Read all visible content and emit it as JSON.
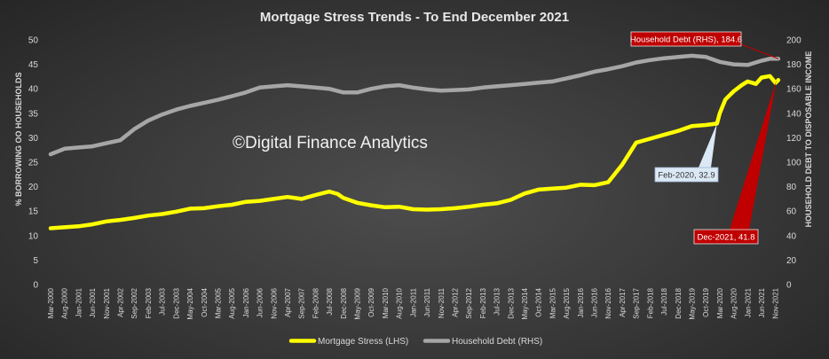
{
  "chart_data": {
    "type": "line",
    "title": "Mortgage Stress Trends - To End December 2021",
    "ylabel_left": "% BORROWING OO HOUSEHOLDS",
    "ylabel_right": "HOUSEHOLD DEBT TO DISPOSABLE INCOME",
    "ylim_left": [
      0,
      50
    ],
    "yticks_left": [
      0,
      5,
      10,
      15,
      20,
      25,
      30,
      35,
      40,
      45,
      50
    ],
    "ylim_right": [
      0,
      200
    ],
    "yticks_right": [
      0,
      20,
      40,
      60,
      80,
      100,
      120,
      140,
      160,
      180,
      200
    ],
    "x_ticks": [
      "Mar-2000",
      "Aug-2000",
      "Jan-2001",
      "Jun-2001",
      "Nov-2001",
      "Apr-2002",
      "Sep-2002",
      "Feb-2003",
      "Jul-2003",
      "Dec-2003",
      "May-2004",
      "Oct-2004",
      "Mar-2005",
      "Aug-2005",
      "Jan-2006",
      "Jun-2006",
      "Nov-2006",
      "Apr-2007",
      "Sep-2007",
      "Feb-2008",
      "Jul-2008",
      "Dec-2008",
      "May-2009",
      "Oct-2009",
      "Mar-2010",
      "Aug-2010",
      "Jan-2011",
      "Jun-2011",
      "Nov-2011",
      "Apr-2012",
      "Sep-2012",
      "Feb-2013",
      "Jul-2013",
      "Dec-2013",
      "May-2014",
      "Oct-2014",
      "Mar-2015",
      "Aug-2015",
      "Jan-2016",
      "Jun-2016",
      "Nov-2016",
      "Apr-2017",
      "Sep-2017",
      "Feb-2018",
      "Jul-2018",
      "Dec-2018",
      "May-2019",
      "Oct-2019",
      "Mar-2020",
      "Aug-2020",
      "Jan-2021",
      "Jun-2021",
      "Nov-2021"
    ],
    "watermark": "©Digital Finance Analytics",
    "series": [
      {
        "name": "Mortgage Stress (LHS)",
        "axis": "left",
        "color": "#ffff00",
        "points": [
          [
            "2000-03",
            11.5
          ],
          [
            "2000-08",
            11.7
          ],
          [
            "2001-01",
            11.9
          ],
          [
            "2001-06",
            12.3
          ],
          [
            "2001-11",
            12.9
          ],
          [
            "2002-04",
            13.2
          ],
          [
            "2002-09",
            13.6
          ],
          [
            "2003-02",
            14.1
          ],
          [
            "2003-07",
            14.4
          ],
          [
            "2003-12",
            14.9
          ],
          [
            "2004-05",
            15.5
          ],
          [
            "2004-10",
            15.6
          ],
          [
            "2005-03",
            16.0
          ],
          [
            "2005-08",
            16.3
          ],
          [
            "2006-01",
            16.9
          ],
          [
            "2006-06",
            17.1
          ],
          [
            "2006-11",
            17.5
          ],
          [
            "2007-04",
            17.9
          ],
          [
            "2007-09",
            17.5
          ],
          [
            "2008-02",
            18.3
          ],
          [
            "2008-07",
            19.0
          ],
          [
            "2008-10",
            18.5
          ],
          [
            "2008-12",
            17.7
          ],
          [
            "2009-05",
            16.7
          ],
          [
            "2009-10",
            16.2
          ],
          [
            "2010-03",
            15.8
          ],
          [
            "2010-08",
            15.9
          ],
          [
            "2011-01",
            15.4
          ],
          [
            "2011-06",
            15.3
          ],
          [
            "2011-11",
            15.4
          ],
          [
            "2012-04",
            15.6
          ],
          [
            "2012-09",
            15.9
          ],
          [
            "2013-02",
            16.3
          ],
          [
            "2013-07",
            16.6
          ],
          [
            "2013-12",
            17.3
          ],
          [
            "2014-05",
            18.6
          ],
          [
            "2014-10",
            19.4
          ],
          [
            "2015-03",
            19.6
          ],
          [
            "2015-08",
            19.8
          ],
          [
            "2016-01",
            20.4
          ],
          [
            "2016-06",
            20.3
          ],
          [
            "2016-11",
            20.9
          ],
          [
            "2017-04",
            24.5
          ],
          [
            "2017-09",
            29.0
          ],
          [
            "2018-02",
            29.8
          ],
          [
            "2018-07",
            30.6
          ],
          [
            "2018-12",
            31.4
          ],
          [
            "2019-05",
            32.4
          ],
          [
            "2019-10",
            32.6
          ],
          [
            "2020-02",
            32.9
          ],
          [
            "2020-03",
            35.0
          ],
          [
            "2020-05",
            37.8
          ],
          [
            "2020-08",
            39.5
          ],
          [
            "2020-11",
            40.8
          ],
          [
            "2021-01",
            41.5
          ],
          [
            "2021-04",
            41.0
          ],
          [
            "2021-06",
            42.3
          ],
          [
            "2021-09",
            42.6
          ],
          [
            "2021-11",
            41.2
          ],
          [
            "2021-12",
            41.8
          ]
        ]
      },
      {
        "name": "Household Debt (RHS)",
        "axis": "right",
        "color": "#a6a6a6",
        "points": [
          [
            "2000-03",
            106.5
          ],
          [
            "2000-08",
            111
          ],
          [
            "2001-01",
            112
          ],
          [
            "2001-06",
            113
          ],
          [
            "2001-11",
            115.5
          ],
          [
            "2002-04",
            118
          ],
          [
            "2002-09",
            127
          ],
          [
            "2003-02",
            134
          ],
          [
            "2003-07",
            139
          ],
          [
            "2003-12",
            143
          ],
          [
            "2004-05",
            146
          ],
          [
            "2004-10",
            148.5
          ],
          [
            "2005-03",
            151
          ],
          [
            "2005-08",
            154
          ],
          [
            "2006-01",
            157
          ],
          [
            "2006-06",
            161
          ],
          [
            "2006-11",
            162
          ],
          [
            "2007-04",
            163
          ],
          [
            "2007-09",
            162
          ],
          [
            "2008-02",
            161
          ],
          [
            "2008-07",
            160
          ],
          [
            "2008-12",
            157
          ],
          [
            "2009-05",
            157
          ],
          [
            "2009-10",
            160
          ],
          [
            "2010-03",
            162
          ],
          [
            "2010-08",
            163
          ],
          [
            "2011-01",
            161
          ],
          [
            "2011-06",
            159.5
          ],
          [
            "2011-11",
            158.5
          ],
          [
            "2012-04",
            159
          ],
          [
            "2012-09",
            159.5
          ],
          [
            "2013-02",
            161
          ],
          [
            "2013-07",
            162
          ],
          [
            "2013-12",
            163
          ],
          [
            "2014-05",
            164
          ],
          [
            "2014-10",
            165
          ],
          [
            "2015-03",
            166
          ],
          [
            "2015-08",
            168.5
          ],
          [
            "2016-01",
            171
          ],
          [
            "2016-06",
            174
          ],
          [
            "2016-11",
            176
          ],
          [
            "2017-04",
            178.5
          ],
          [
            "2017-09",
            181.5
          ],
          [
            "2018-02",
            183.5
          ],
          [
            "2018-07",
            185
          ],
          [
            "2018-12",
            186
          ],
          [
            "2019-05",
            187
          ],
          [
            "2019-10",
            186
          ],
          [
            "2020-03",
            182
          ],
          [
            "2020-08",
            180
          ],
          [
            "2021-01",
            179.5
          ],
          [
            "2021-06",
            183
          ],
          [
            "2021-09",
            184.6
          ],
          [
            "2021-12",
            184.6
          ]
        ]
      }
    ],
    "annotations": [
      {
        "text": "Household Debt (RHS), 184.6",
        "series": "Household Debt (RHS)",
        "x": "2021-12",
        "y": 184.6,
        "style": "red"
      },
      {
        "text": "Feb-2020, 32.9",
        "series": "Mortgage Stress (LHS)",
        "x": "2020-02",
        "y": 32.9,
        "style": "light"
      },
      {
        "text": "Dec-2021, 41.8",
        "series": "Mortgage Stress (LHS)",
        "x": "2021-12",
        "y": 41.8,
        "style": "red"
      }
    ],
    "legend_position": "bottom-center",
    "grid": false
  }
}
